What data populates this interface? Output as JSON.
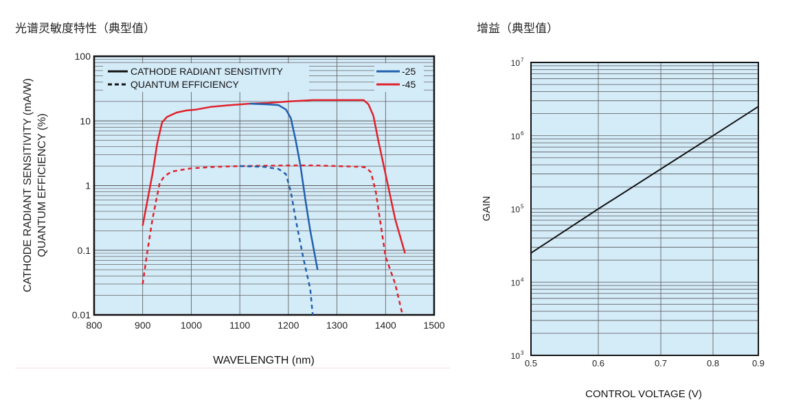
{
  "chart_data": [
    {
      "type": "line",
      "title": "光谱灵敏度特性（典型值）",
      "xlabel": "WAVELENGTH (nm)",
      "ylabel": [
        "CATHODE RADIANT SENSITIVITY (mA/W)",
        "QUANTUM EFFICIENCY (%)"
      ],
      "xlim": [
        800,
        1500
      ],
      "ylim": [
        0.01,
        100
      ],
      "yscale": "log",
      "xticks": [
        "800",
        "900",
        "1000",
        "1100",
        "1200",
        "1300",
        "1400",
        "1500"
      ],
      "yticks": [
        "0.01",
        "0.1",
        "1",
        "10",
        "100"
      ],
      "legend": {
        "placement": "top",
        "styles": [
          {
            "label": "CATHODE RADIANT SENSITIVITY",
            "dash": "solid"
          },
          {
            "label": "QUANTUM EFFICIENCY",
            "dash": "dashed"
          }
        ],
        "types": [
          {
            "label": "-25",
            "color": "#1f5fae"
          },
          {
            "label": "-45",
            "color": "#e0202a"
          }
        ]
      },
      "series": [
        {
          "name": "-45 cathode radiant sensitivity",
          "color": "#e0202a",
          "dash": false,
          "x": [
            900,
            910,
            920,
            930,
            940,
            950,
            970,
            990,
            1010,
            1040,
            1080,
            1120,
            1160,
            1200,
            1250,
            1300,
            1340,
            1355,
            1365,
            1375,
            1385,
            1400,
            1420,
            1440
          ],
          "y": [
            0.24,
            0.6,
            1.5,
            4.5,
            9.5,
            11.5,
            13.5,
            14.5,
            15,
            16.5,
            17.5,
            18.5,
            19,
            20,
            21,
            21,
            21,
            21,
            18,
            12,
            5,
            1.5,
            0.3,
            0.09
          ]
        },
        {
          "name": "-25 cathode radiant sensitivity",
          "color": "#1f5fae",
          "dash": false,
          "x": [
            1120,
            1160,
            1180,
            1195,
            1205,
            1215,
            1225,
            1235,
            1245,
            1260
          ],
          "y": [
            18.5,
            18,
            17.5,
            15,
            11,
            5,
            2,
            0.6,
            0.2,
            0.05
          ]
        },
        {
          "name": "-45 quantum efficiency",
          "color": "#e0202a",
          "dash": true,
          "x": [
            900,
            910,
            920,
            935,
            945,
            960,
            1000,
            1050,
            1100,
            1200,
            1250,
            1300,
            1350,
            1360,
            1370,
            1380,
            1390,
            1400,
            1420,
            1435
          ],
          "y": [
            0.03,
            0.1,
            0.3,
            1.1,
            1.4,
            1.65,
            1.85,
            1.95,
            2,
            2.05,
            2.05,
            2,
            1.95,
            1.9,
            1.6,
            0.8,
            0.25,
            0.08,
            0.03,
            0.01
          ]
        },
        {
          "name": "-25 quantum efficiency",
          "color": "#1f5fae",
          "dash": true,
          "x": [
            1100,
            1150,
            1180,
            1195,
            1205,
            1215,
            1230,
            1245,
            1250
          ],
          "y": [
            2,
            1.95,
            1.8,
            1.5,
            0.8,
            0.3,
            0.08,
            0.025,
            0.01
          ]
        }
      ]
    },
    {
      "type": "line",
      "title": "增益（典型值）",
      "xlabel": "CONTROL VOLTAGE (V)",
      "ylabel": "GAIN",
      "xlim": [
        0.5,
        0.9
      ],
      "ylim": [
        1000,
        10000000
      ],
      "yscale": "log",
      "xticks": [
        "0.5",
        "0.6",
        "0.7",
        "0.8",
        "0.9"
      ],
      "yticks": [
        {
          "base": "10",
          "exp": "3"
        },
        {
          "base": "10",
          "exp": "4"
        },
        {
          "base": "10",
          "exp": "5"
        },
        {
          "base": "10",
          "exp": "6"
        },
        {
          "base": "10",
          "exp": "7"
        }
      ],
      "series": [
        {
          "name": "gain",
          "color": "#111111",
          "x": [
            0.5,
            0.6,
            0.7,
            0.8,
            0.9
          ],
          "y": [
            25000,
            100000,
            350000,
            1000000,
            2500000
          ]
        }
      ]
    }
  ]
}
